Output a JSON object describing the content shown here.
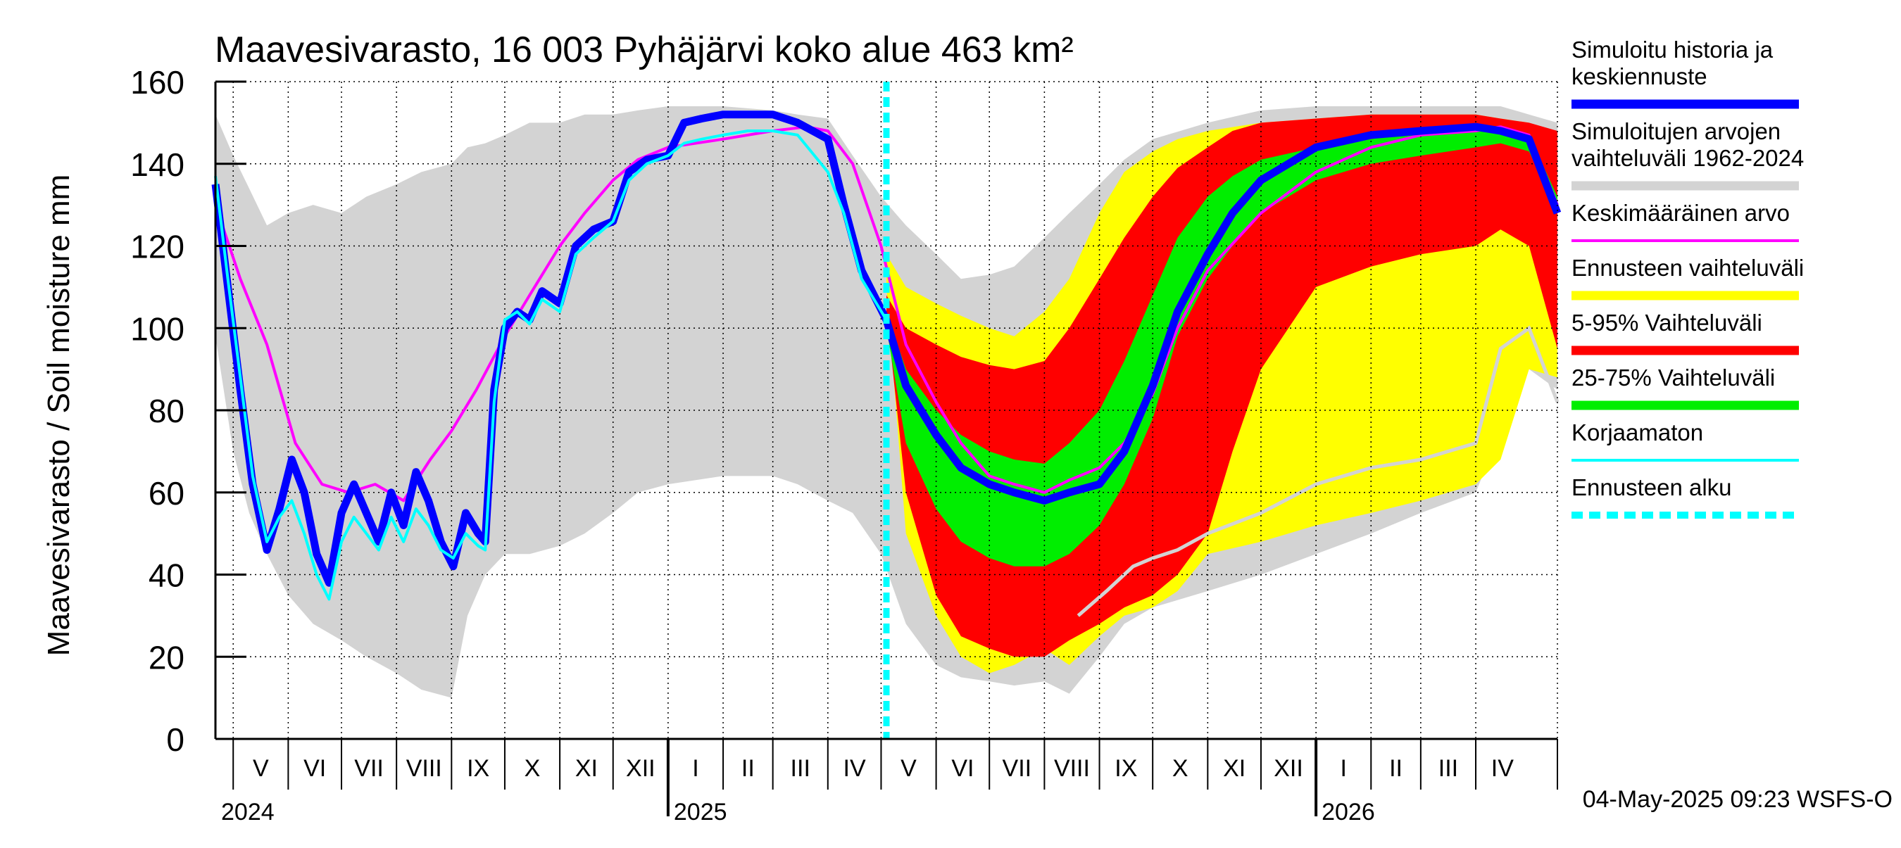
{
  "chart_data": {
    "type": "area",
    "title": "Maavesivarasto, 16 003 Pyhäjärvi koko alue 463 km²",
    "ylabel": "Maavesivarasto / Soil moisture   mm",
    "xlabel": "",
    "ylim": [
      0,
      160
    ],
    "yticks": [
      "0",
      "20",
      "40",
      "60",
      "80",
      "100",
      "120",
      "140",
      "160"
    ],
    "x_start": "2024-04-21",
    "x_end": "2026-05-17",
    "forecast_start": "2025-05-04",
    "grid": true,
    "legend_position": "right",
    "months": [
      {
        "label": "V",
        "start": "2024-05-01",
        "end": "2024-06-01"
      },
      {
        "label": "VI",
        "start": "2024-06-01",
        "end": "2024-07-01"
      },
      {
        "label": "VII",
        "start": "2024-07-01",
        "end": "2024-08-01"
      },
      {
        "label": "VIII",
        "start": "2024-08-01",
        "end": "2024-09-01"
      },
      {
        "label": "IX",
        "start": "2024-09-01",
        "end": "2024-10-01"
      },
      {
        "label": "X",
        "start": "2024-10-01",
        "end": "2024-11-01"
      },
      {
        "label": "XI",
        "start": "2024-11-01",
        "end": "2024-12-01"
      },
      {
        "label": "XII",
        "start": "2024-12-01",
        "end": "2025-01-01"
      },
      {
        "label": "I",
        "start": "2025-01-01",
        "end": "2025-02-01"
      },
      {
        "label": "II",
        "start": "2025-02-01",
        "end": "2025-03-01"
      },
      {
        "label": "III",
        "start": "2025-03-01",
        "end": "2025-04-01"
      },
      {
        "label": "IV",
        "start": "2025-04-01",
        "end": "2025-05-01"
      },
      {
        "label": "V",
        "start": "2025-05-01",
        "end": "2025-06-01"
      },
      {
        "label": "VI",
        "start": "2025-06-01",
        "end": "2025-07-01"
      },
      {
        "label": "VII",
        "start": "2025-07-01",
        "end": "2025-08-01"
      },
      {
        "label": "VIII",
        "start": "2025-08-01",
        "end": "2025-09-01"
      },
      {
        "label": "IX",
        "start": "2025-09-01",
        "end": "2025-10-01"
      },
      {
        "label": "X",
        "start": "2025-10-01",
        "end": "2025-11-01"
      },
      {
        "label": "XI",
        "start": "2025-11-01",
        "end": "2025-12-01"
      },
      {
        "label": "XII",
        "start": "2025-12-01",
        "end": "2026-01-01"
      },
      {
        "label": "I",
        "start": "2026-01-01",
        "end": "2026-02-01"
      },
      {
        "label": "II",
        "start": "2026-02-01",
        "end": "2026-03-01"
      },
      {
        "label": "III",
        "start": "2026-03-01",
        "end": "2026-04-01"
      },
      {
        "label": "IV",
        "start": "2026-04-01",
        "end": "2026-05-01"
      }
    ],
    "years": [
      {
        "label": "2024",
        "date": "2024-04-21"
      },
      {
        "label": "2025",
        "date": "2025-01-01"
      },
      {
        "label": "2026",
        "date": "2026-01-01"
      }
    ],
    "colors": {
      "history_range": "#d3d3d3",
      "forecast_range": "#ffff00",
      "p5_95": "#ff0000",
      "p25_75": "#00ee00",
      "simulated": "#0000ff",
      "mean": "#ff00ff",
      "uncorrected": "#00ffff",
      "forecast_start": "#00ffff"
    },
    "legend": [
      {
        "label": "Simuloitu historia ja keskiennuste",
        "color": "#0000ff",
        "style": "thick"
      },
      {
        "label": "Simuloitujen arvojen vaihteluväli 1962-2024",
        "color": "#d3d3d3",
        "style": "thick"
      },
      {
        "label": "Keskimääräinen arvo",
        "color": "#ff00ff",
        "style": "thin"
      },
      {
        "label": "Ennusteen vaihteluväli",
        "color": "#ffff00",
        "style": "thick"
      },
      {
        "label": "5-95% Vaihteluväli",
        "color": "#ff0000",
        "style": "thick"
      },
      {
        "label": "25-75% Vaihteluväli",
        "color": "#00ee00",
        "style": "thick"
      },
      {
        "label": "Korjaamaton",
        "color": "#00ffff",
        "style": "thin"
      },
      {
        "label": "Ennusteen alku",
        "color": "#00ffff",
        "style": "dashed"
      }
    ],
    "series": {
      "history_range": {
        "x": [
          "2024-04-21",
          "2024-05-01",
          "2024-05-10",
          "2024-05-20",
          "2024-06-01",
          "2024-06-15",
          "2024-07-01",
          "2024-07-15",
          "2024-08-01",
          "2024-08-15",
          "2024-09-01",
          "2024-09-10",
          "2024-09-20",
          "2024-10-01",
          "2024-10-15",
          "2024-11-01",
          "2024-11-15",
          "2024-12-01",
          "2024-12-15",
          "2025-01-01",
          "2025-02-01",
          "2025-03-01",
          "2025-03-15",
          "2025-04-01",
          "2025-04-15",
          "2025-05-01",
          "2025-05-15",
          "2025-06-01",
          "2025-06-15",
          "2025-07-01",
          "2025-07-15",
          "2025-08-01",
          "2025-08-15",
          "2025-09-01",
          "2025-09-15",
          "2025-10-01",
          "2025-11-01",
          "2025-12-01",
          "2026-01-01",
          "2026-02-01",
          "2026-03-01",
          "2026-04-01",
          "2026-04-15",
          "2026-05-01",
          "2026-05-17"
        ],
        "upper": [
          152,
          142,
          134,
          125,
          128,
          130,
          128,
          132,
          135,
          138,
          140,
          144,
          145,
          147,
          150,
          150,
          152,
          152,
          153,
          154,
          154,
          153,
          152,
          151,
          142,
          132,
          125,
          118,
          112,
          113,
          115,
          122,
          128,
          135,
          141,
          146,
          150,
          153,
          154,
          154,
          154,
          154,
          154,
          152,
          150
        ],
        "lower": [
          98,
          70,
          55,
          45,
          35,
          28,
          24,
          20,
          16,
          12,
          10,
          30,
          40,
          45,
          45,
          47,
          50,
          55,
          60,
          62,
          64,
          64,
          62,
          58,
          55,
          45,
          28,
          18,
          15,
          14,
          13,
          14,
          11,
          20,
          28,
          32,
          36,
          40,
          45,
          50,
          55,
          60,
          75,
          90,
          85
        ]
      },
      "forecast_range": {
        "x": [
          "2025-05-04",
          "2025-05-15",
          "2025-06-01",
          "2025-06-15",
          "2025-07-01",
          "2025-07-15",
          "2025-08-01",
          "2025-08-15",
          "2025-09-01",
          "2025-09-15",
          "2025-10-01",
          "2025-10-15",
          "2025-11-01",
          "2025-12-01",
          "2026-01-01",
          "2026-02-01",
          "2026-03-01",
          "2026-04-01",
          "2026-04-15",
          "2026-05-01",
          "2026-05-17"
        ],
        "upper": [
          118,
          110,
          106,
          103,
          100,
          98,
          104,
          112,
          128,
          138,
          143,
          146,
          148,
          150,
          151,
          152,
          152,
          152,
          151,
          150,
          147
        ],
        "lower": [
          110,
          50,
          30,
          20,
          16,
          18,
          22,
          18,
          25,
          30,
          32,
          36,
          45,
          48,
          52,
          55,
          58,
          62,
          68,
          90,
          88
        ]
      },
      "p5_95": {
        "x": [
          "2025-05-04",
          "2025-05-15",
          "2025-06-01",
          "2025-06-15",
          "2025-07-01",
          "2025-07-15",
          "2025-08-01",
          "2025-08-15",
          "2025-09-01",
          "2025-09-15",
          "2025-10-01",
          "2025-10-15",
          "2025-11-01",
          "2025-11-15",
          "2025-12-01",
          "2026-01-01",
          "2026-02-01",
          "2026-03-01",
          "2026-04-01",
          "2026-04-15",
          "2026-05-01",
          "2026-05-17"
        ],
        "upper": [
          108,
          100,
          96,
          93,
          91,
          90,
          92,
          100,
          112,
          122,
          132,
          139,
          144,
          148,
          150,
          151,
          152,
          152,
          152,
          151,
          150,
          148
        ],
        "lower": [
          104,
          60,
          35,
          25,
          22,
          20,
          20,
          24,
          28,
          32,
          35,
          40,
          50,
          70,
          90,
          110,
          115,
          118,
          120,
          124,
          120,
          95
        ]
      },
      "p25_75": {
        "x": [
          "2025-05-04",
          "2025-05-15",
          "2025-06-01",
          "2025-06-15",
          "2025-07-01",
          "2025-07-15",
          "2025-08-01",
          "2025-08-15",
          "2025-09-01",
          "2025-09-15",
          "2025-10-01",
          "2025-10-15",
          "2025-11-01",
          "2025-11-15",
          "2025-12-01",
          "2026-01-01",
          "2026-02-01",
          "2026-03-01",
          "2026-04-01",
          "2026-04-15",
          "2026-05-01",
          "2026-05-17"
        ],
        "upper": [
          104,
          90,
          80,
          74,
          70,
          68,
          67,
          72,
          80,
          92,
          108,
          122,
          132,
          137,
          141,
          144,
          146,
          148,
          149,
          149,
          147,
          132
        ],
        "lower": [
          100,
          72,
          56,
          48,
          44,
          42,
          42,
          45,
          52,
          62,
          78,
          98,
          112,
          120,
          128,
          136,
          140,
          142,
          144,
          145,
          143,
          128
        ]
      },
      "simulated": {
        "x": [
          "2024-04-21",
          "2024-04-28",
          "2024-05-05",
          "2024-05-12",
          "2024-05-20",
          "2024-05-27",
          "2024-06-03",
          "2024-06-10",
          "2024-06-17",
          "2024-06-24",
          "2024-07-01",
          "2024-07-08",
          "2024-07-15",
          "2024-07-22",
          "2024-07-29",
          "2024-08-05",
          "2024-08-12",
          "2024-08-19",
          "2024-08-26",
          "2024-09-02",
          "2024-09-09",
          "2024-09-16",
          "2024-09-20",
          "2024-09-25",
          "2024-10-01",
          "2024-10-08",
          "2024-10-15",
          "2024-10-22",
          "2024-11-01",
          "2024-11-10",
          "2024-11-20",
          "2024-12-01",
          "2024-12-10",
          "2024-12-20",
          "2025-01-01",
          "2025-01-10",
          "2025-01-20",
          "2025-02-01",
          "2025-02-15",
          "2025-03-01",
          "2025-03-15",
          "2025-04-01",
          "2025-04-10",
          "2025-04-20",
          "2025-05-04",
          "2025-05-15",
          "2025-06-01",
          "2025-06-15",
          "2025-07-01",
          "2025-07-15",
          "2025-08-01",
          "2025-08-15",
          "2025-09-01",
          "2025-09-15",
          "2025-10-01",
          "2025-10-15",
          "2025-11-01",
          "2025-11-15",
          "2025-12-01",
          "2026-01-01",
          "2026-02-01",
          "2026-03-01",
          "2026-04-01",
          "2026-04-15",
          "2026-05-01",
          "2026-05-17"
        ],
        "y": [
          135,
          110,
          85,
          62,
          46,
          56,
          68,
          60,
          45,
          38,
          55,
          62,
          55,
          48,
          60,
          52,
          65,
          58,
          48,
          42,
          55,
          50,
          48,
          85,
          100,
          104,
          102,
          109,
          106,
          120,
          124,
          126,
          138,
          141,
          142,
          150,
          151,
          152,
          152,
          152,
          150,
          146,
          130,
          114,
          102,
          86,
          74,
          66,
          62,
          60,
          58,
          60,
          62,
          70,
          86,
          104,
          118,
          128,
          136,
          144,
          147,
          148,
          149,
          148,
          146,
          128
        ]
      },
      "mean": {
        "x": [
          "2024-04-21",
          "2024-05-05",
          "2024-05-20",
          "2024-06-05",
          "2024-06-20",
          "2024-07-05",
          "2024-07-20",
          "2024-08-05",
          "2024-08-20",
          "2024-09-01",
          "2024-09-15",
          "2024-10-01",
          "2024-10-15",
          "2024-11-01",
          "2024-11-15",
          "2024-12-01",
          "2024-12-15",
          "2025-01-01",
          "2025-02-01",
          "2025-03-01",
          "2025-03-20",
          "2025-04-01",
          "2025-04-15",
          "2025-05-01",
          "2025-05-15",
          "2025-06-01",
          "2025-06-15",
          "2025-07-01",
          "2025-07-15",
          "2025-08-01",
          "2025-08-15",
          "2025-09-01",
          "2025-09-15",
          "2025-10-01",
          "2025-10-15",
          "2025-11-01",
          "2025-12-01",
          "2026-01-01",
          "2026-02-01",
          "2026-03-01",
          "2026-04-01",
          "2026-04-15",
          "2026-05-01",
          "2026-05-17"
        ],
        "y": [
          130,
          112,
          96,
          72,
          62,
          60,
          62,
          58,
          68,
          75,
          85,
          98,
          108,
          120,
          128,
          136,
          141,
          144,
          146,
          148,
          149,
          148,
          140,
          120,
          96,
          82,
          72,
          64,
          62,
          60,
          63,
          66,
          72,
          84,
          100,
          114,
          128,
          138,
          144,
          147,
          148,
          149,
          147,
          130
        ]
      },
      "uncorrected": {
        "x": [
          "2024-04-21",
          "2024-04-28",
          "2024-05-05",
          "2024-05-12",
          "2024-05-20",
          "2024-05-27",
          "2024-06-03",
          "2024-06-10",
          "2024-06-17",
          "2024-06-24",
          "2024-07-01",
          "2024-07-08",
          "2024-07-15",
          "2024-07-22",
          "2024-07-29",
          "2024-08-05",
          "2024-08-12",
          "2024-08-19",
          "2024-08-26",
          "2024-09-02",
          "2024-09-09",
          "2024-09-16",
          "2024-09-20",
          "2024-09-25",
          "2024-10-01",
          "2024-10-08",
          "2024-10-15",
          "2024-10-22",
          "2024-11-01",
          "2024-11-10",
          "2024-11-20",
          "2024-12-01",
          "2024-12-10",
          "2024-12-20",
          "2025-01-01",
          "2025-01-10",
          "2025-01-20",
          "2025-02-01",
          "2025-02-15",
          "2025-03-01",
          "2025-03-15",
          "2025-04-01",
          "2025-04-10",
          "2025-04-20",
          "2025-05-04"
        ],
        "y": [
          137,
          112,
          88,
          64,
          48,
          54,
          58,
          50,
          40,
          34,
          48,
          54,
          50,
          46,
          54,
          48,
          56,
          52,
          46,
          44,
          50,
          47,
          46,
          82,
          102,
          104,
          101,
          107,
          104,
          118,
          122,
          126,
          136,
          140,
          142,
          145,
          146,
          147,
          148,
          148,
          147,
          138,
          128,
          112,
          102
        ]
      },
      "history_median_tail": {
        "x": [
          "2025-08-20",
          "2025-09-05",
          "2025-09-20",
          "2025-10-01",
          "2025-10-15",
          "2025-11-01",
          "2025-12-01",
          "2026-01-01",
          "2026-02-01",
          "2026-03-01",
          "2026-04-01",
          "2026-04-15",
          "2026-05-01",
          "2026-05-17"
        ],
        "y": [
          30,
          36,
          42,
          44,
          46,
          50,
          55,
          62,
          66,
          68,
          72,
          95,
          100,
          82
        ]
      }
    },
    "footer_stamp": "04-May-2025 09:23 WSFS-O"
  }
}
